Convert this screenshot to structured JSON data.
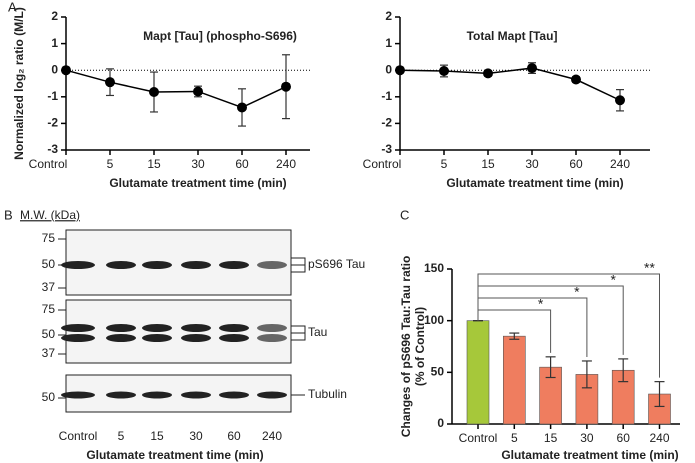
{
  "panel_labels": [
    "A",
    "B",
    "C"
  ],
  "chart_data": [
    {
      "type": "line",
      "title": "Mapt [Tau] (phospho-S696)",
      "ylabel": "Normalized log₂ ratio (M/L)",
      "xlabel": "Glutamate treatment time (min)",
      "categories": [
        "Control",
        "5",
        "15",
        "30",
        "60",
        "240"
      ],
      "values": [
        0,
        -0.45,
        -0.82,
        -0.8,
        -1.4,
        -0.62
      ],
      "errors": [
        0,
        0.5,
        0.75,
        0.2,
        0.7,
        1.2
      ],
      "color": "#000000",
      "ylim": [
        -3,
        2
      ],
      "yticks": [
        -3,
        -2,
        -1,
        0,
        1,
        2
      ],
      "refline": 0
    },
    {
      "type": "line",
      "title": "Total Mapt [Tau]",
      "xlabel": "Glutamate treatment time (min)",
      "categories": [
        "Control",
        "5",
        "15",
        "30",
        "60",
        "240"
      ],
      "values": [
        0,
        -0.03,
        -0.12,
        0.08,
        -0.35,
        -1.13
      ],
      "errors": [
        0,
        0.22,
        0.1,
        0.2,
        0.1,
        0.4
      ],
      "color": "#000000",
      "ylim": [
        -3,
        2
      ],
      "yticks": [
        -3,
        -2,
        -1,
        0,
        1,
        2
      ],
      "refline": 0
    },
    {
      "type": "bar",
      "ylabel": [
        "Changes of pS696 Tau:Tau ratio",
        "(% of Control)"
      ],
      "xlabel": "Glutamate treatment time (min)",
      "categories": [
        "Control",
        "5",
        "15",
        "30",
        "60",
        "240"
      ],
      "values": [
        100,
        85,
        55,
        48,
        52,
        29
      ],
      "errors": [
        0,
        3,
        10,
        13,
        11,
        12
      ],
      "colors": [
        "#a6c83a",
        "#ef7d5f",
        "#ef7d5f",
        "#ef7d5f",
        "#ef7d5f",
        "#ef7d5f"
      ],
      "significance": [
        null,
        null,
        "*",
        "*",
        "*",
        "**"
      ],
      "ylim": [
        0,
        150
      ],
      "yticks": [
        0,
        50,
        100,
        150
      ]
    }
  ],
  "blot": {
    "header": "M.W. (kDa)",
    "panels": [
      {
        "mw": [
          "75",
          "50",
          "37"
        ],
        "label": "pS696 Tau"
      },
      {
        "mw": [
          "75",
          "50",
          "37"
        ],
        "label": "Tau"
      },
      {
        "mw": [
          "50"
        ],
        "label": "Tubulin"
      }
    ],
    "lanes": [
      "Control",
      "5",
      "15",
      "30",
      "60",
      "240"
    ],
    "xlabel": "Glutamate treatment time (min)"
  }
}
